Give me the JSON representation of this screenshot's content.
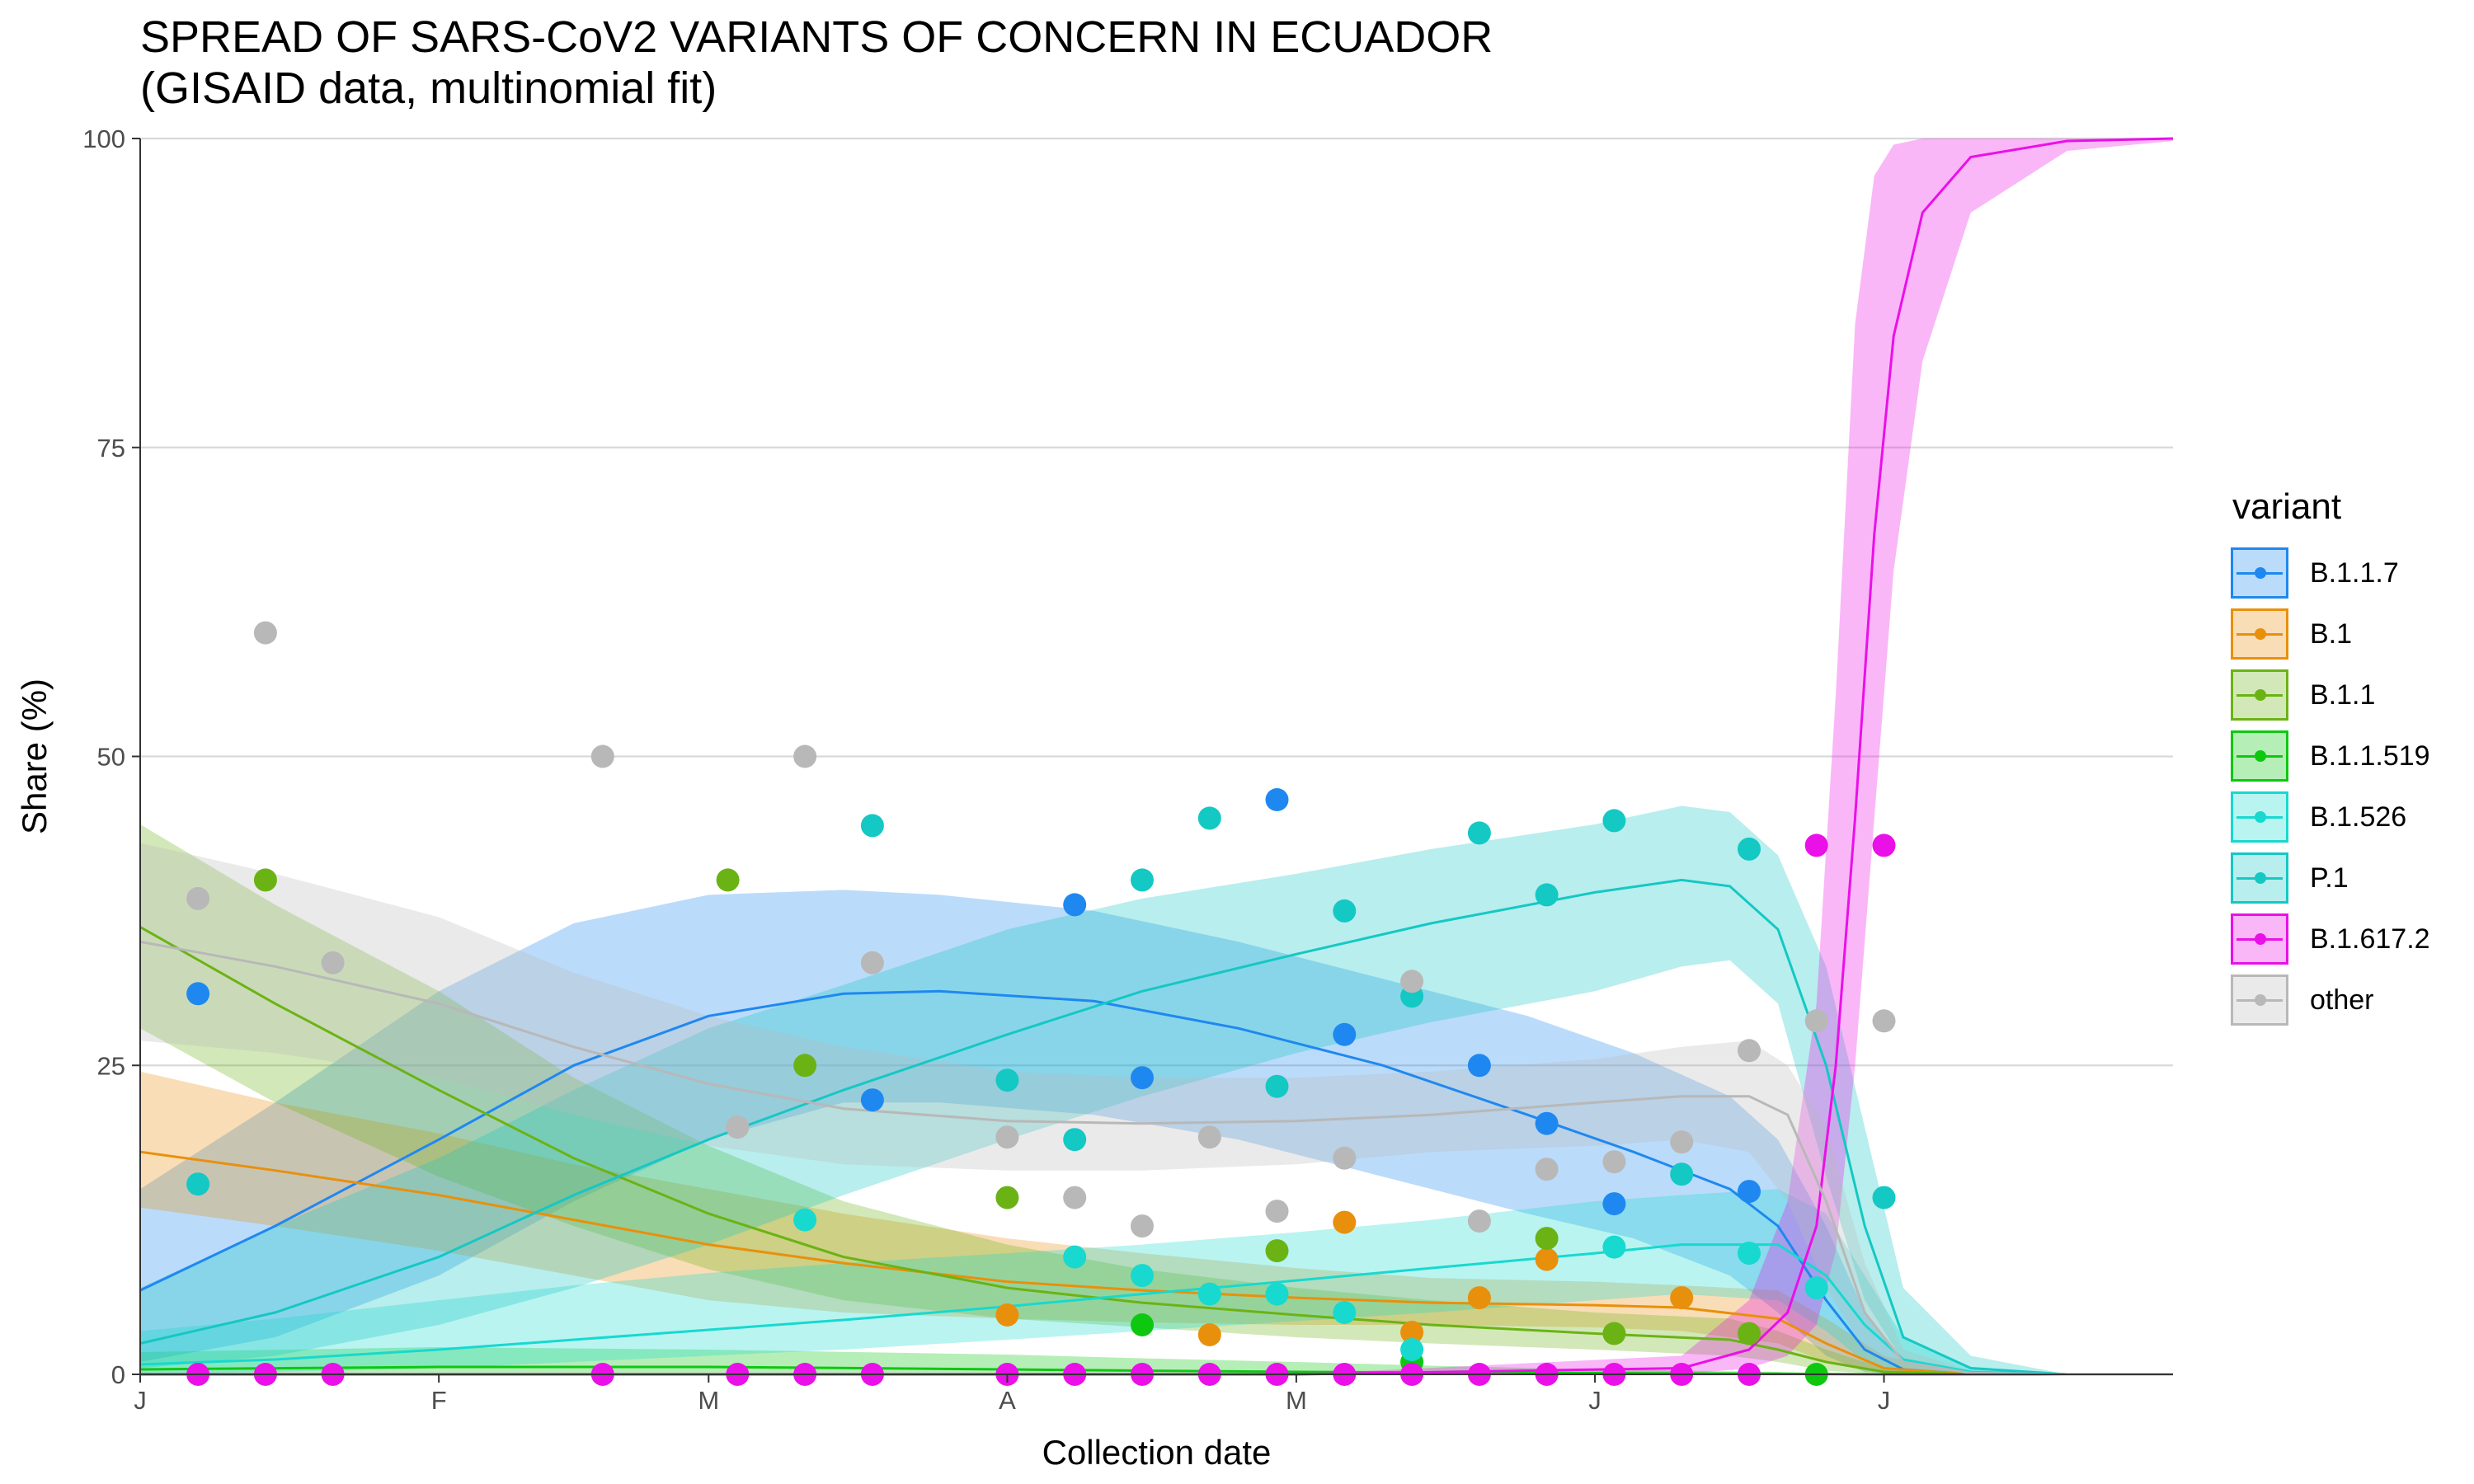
{
  "title_lines": [
    "SPREAD OF SARS-CoV2 VARIANTS OF CONCERN IN ECUADOR",
    "(GISAID data, multinomial fit)"
  ],
  "chart_data": {
    "type": "line",
    "title": "SPREAD OF SARS-CoV2 VARIANTS OF CONCERN IN ECUADOR (GISAID data, multinomial fit)",
    "xlabel": "Collection date",
    "ylabel": "Share (%)",
    "xlim": [
      "2021-01-01",
      "2021-07-31"
    ],
    "ylim": [
      0,
      100
    ],
    "x_ticks": [
      {
        "date": "2021-01-01",
        "label": "J"
      },
      {
        "date": "2021-02-01",
        "label": "F"
      },
      {
        "date": "2021-03-01",
        "label": "M"
      },
      {
        "date": "2021-04-01",
        "label": "A"
      },
      {
        "date": "2021-05-01",
        "label": "M"
      },
      {
        "date": "2021-06-01",
        "label": "J"
      },
      {
        "date": "2021-07-01",
        "label": "J"
      }
    ],
    "y_ticks": [
      0,
      25,
      50,
      75,
      100
    ],
    "grid": true,
    "legend_title": "variant",
    "legend_position": "right",
    "series": [
      {
        "name": "B.1.1.7",
        "color": "#1f88f0",
        "fit_x": [
          "2021-01-01",
          "2021-01-15",
          "2021-02-01",
          "2021-02-15",
          "2021-03-01",
          "2021-03-15",
          "2021-03-25",
          "2021-04-10",
          "2021-04-25",
          "2021-05-10",
          "2021-05-25",
          "2021-06-05",
          "2021-06-15",
          "2021-06-20",
          "2021-06-25",
          "2021-06-29",
          "2021-07-03",
          "2021-07-10",
          "2021-07-20",
          "2021-07-31"
        ],
        "fit": [
          6.8,
          12,
          19,
          25,
          29,
          30.8,
          31,
          30.2,
          28,
          25,
          21,
          18,
          15,
          12,
          6,
          2,
          0.4,
          0,
          0,
          0
        ],
        "ci_lo": [
          1,
          3,
          8,
          14,
          19,
          22,
          22,
          21,
          19,
          16,
          13,
          11,
          8,
          5,
          1.5,
          0.2,
          0,
          0,
          0,
          0
        ],
        "ci_hi": [
          15,
          22,
          31,
          36.5,
          38.8,
          39.2,
          38.8,
          37.5,
          35,
          32,
          29,
          26,
          22.5,
          19,
          12,
          5,
          1,
          0,
          0,
          0
        ],
        "points": [
          [
            "2021-01-07",
            30.8
          ],
          [
            "2021-03-18",
            22.2
          ],
          [
            "2021-04-08",
            38
          ],
          [
            "2021-04-15",
            24
          ],
          [
            "2021-04-29",
            46.5
          ],
          [
            "2021-05-06",
            27.5
          ],
          [
            "2021-05-20",
            25
          ],
          [
            "2021-05-27",
            20.3
          ],
          [
            "2021-06-03",
            13.8
          ],
          [
            "2021-06-17",
            14.8
          ]
        ]
      },
      {
        "name": "B.1",
        "color": "#e8900c",
        "fit_x": [
          "2021-01-01",
          "2021-01-15",
          "2021-02-01",
          "2021-02-15",
          "2021-03-01",
          "2021-03-15",
          "2021-04-01",
          "2021-04-15",
          "2021-05-01",
          "2021-05-15",
          "2021-06-01",
          "2021-06-10",
          "2021-06-20",
          "2021-06-25",
          "2021-07-01",
          "2021-07-10",
          "2021-07-31"
        ],
        "fit": [
          18,
          16.5,
          14.5,
          12.5,
          10.5,
          9,
          7.5,
          6.8,
          6.2,
          5.8,
          5.6,
          5.4,
          4.5,
          2.5,
          0.5,
          0,
          0
        ],
        "ci_lo": [
          13.5,
          12,
          10,
          8,
          6,
          5,
          4.5,
          4.2,
          4,
          4,
          3.8,
          3.5,
          2.5,
          1,
          0.1,
          0,
          0
        ],
        "ci_hi": [
          24.5,
          22,
          19.5,
          17,
          15,
          13,
          11,
          9.8,
          8.6,
          7.8,
          7.5,
          7.2,
          6.8,
          4.5,
          1.5,
          0,
          0
        ],
        "points": [
          [
            "2021-04-01",
            4.8
          ],
          [
            "2021-04-22",
            3.2
          ],
          [
            "2021-05-06",
            12.3
          ],
          [
            "2021-05-13",
            3.4
          ],
          [
            "2021-05-20",
            6.2
          ],
          [
            "2021-05-27",
            9.3
          ],
          [
            "2021-06-10",
            6.2
          ]
        ]
      },
      {
        "name": "B.1.1",
        "color": "#6bb314",
        "fit_x": [
          "2021-01-01",
          "2021-01-15",
          "2021-02-01",
          "2021-02-15",
          "2021-03-01",
          "2021-03-15",
          "2021-04-01",
          "2021-04-15",
          "2021-05-01",
          "2021-05-15",
          "2021-06-01",
          "2021-06-15",
          "2021-06-20",
          "2021-06-25",
          "2021-07-01",
          "2021-07-10",
          "2021-07-31"
        ],
        "fit": [
          36.2,
          30,
          23,
          17.5,
          13,
          9.5,
          7,
          5.8,
          4.8,
          4,
          3.3,
          2.8,
          2,
          1,
          0.2,
          0,
          0
        ],
        "ci_lo": [
          28,
          22,
          16,
          12,
          8.5,
          6,
          4.5,
          3.8,
          3,
          2.5,
          2,
          1.5,
          1,
          0.3,
          0,
          0,
          0
        ],
        "ci_hi": [
          44.5,
          38,
          31,
          24,
          18.5,
          14,
          10.5,
          8.5,
          7,
          6,
          5,
          4.5,
          3.5,
          2,
          0.5,
          0,
          0
        ],
        "points": [
          [
            "2021-01-14",
            40
          ],
          [
            "2021-03-03",
            40
          ],
          [
            "2021-03-11",
            25
          ],
          [
            "2021-04-01",
            14.3
          ],
          [
            "2021-04-29",
            10
          ],
          [
            "2021-05-27",
            11
          ],
          [
            "2021-06-03",
            3.3
          ],
          [
            "2021-06-17",
            3.3
          ]
        ]
      },
      {
        "name": "B.1.1.519",
        "color": "#0ec810",
        "fit_x": [
          "2021-01-01",
          "2021-02-01",
          "2021-03-01",
          "2021-04-01",
          "2021-04-15",
          "2021-05-01",
          "2021-05-15",
          "2021-06-01",
          "2021-06-20",
          "2021-07-01",
          "2021-07-31"
        ],
        "fit": [
          0.4,
          0.6,
          0.6,
          0.4,
          0.3,
          0.2,
          0.15,
          0.1,
          0.05,
          0,
          0
        ],
        "ci_lo": [
          0,
          0.1,
          0.1,
          0.1,
          0,
          0,
          0,
          0,
          0,
          0,
          0
        ],
        "ci_hi": [
          1.8,
          2.2,
          2,
          1.6,
          1.3,
          1,
          0.7,
          0.4,
          0.2,
          0,
          0
        ],
        "points": [
          [
            "2021-04-15",
            4
          ],
          [
            "2021-05-13",
            1
          ],
          [
            "2021-06-24",
            0
          ]
        ]
      },
      {
        "name": "B.1.526",
        "color": "#17d9cf",
        "fit_x": [
          "2021-01-01",
          "2021-01-15",
          "2021-02-01",
          "2021-02-15",
          "2021-03-01",
          "2021-03-15",
          "2021-04-01",
          "2021-04-15",
          "2021-05-01",
          "2021-05-15",
          "2021-06-01",
          "2021-06-10",
          "2021-06-20",
          "2021-06-25",
          "2021-06-29",
          "2021-07-03",
          "2021-07-10",
          "2021-07-20",
          "2021-07-31"
        ],
        "fit": [
          0.8,
          1.2,
          2,
          2.8,
          3.6,
          4.4,
          5.5,
          6.5,
          7.6,
          8.6,
          9.8,
          10.5,
          10.5,
          8,
          4,
          1.2,
          0.2,
          0,
          0
        ],
        "ci_lo": [
          0,
          0.2,
          0.5,
          1,
          1.5,
          2,
          2.8,
          3.5,
          4.3,
          5,
          6,
          6.5,
          6,
          3.5,
          1,
          0.2,
          0,
          0,
          0
        ],
        "ci_hi": [
          3.5,
          4.5,
          6,
          7.2,
          8.2,
          9,
          9.8,
          10.5,
          11.5,
          12.5,
          14,
          14.5,
          15,
          13,
          8,
          3,
          0.6,
          0,
          0
        ],
        "points": [
          [
            "2021-03-11",
            12.5
          ],
          [
            "2021-04-08",
            9.5
          ],
          [
            "2021-04-15",
            8
          ],
          [
            "2021-04-22",
            6.5
          ],
          [
            "2021-04-29",
            6.5
          ],
          [
            "2021-05-06",
            5
          ],
          [
            "2021-05-13",
            2
          ],
          [
            "2021-06-03",
            10.3
          ],
          [
            "2021-06-17",
            9.8
          ],
          [
            "2021-06-24",
            7
          ]
        ]
      },
      {
        "name": "P.1",
        "color": "#14c8c4",
        "fit_x": [
          "2021-01-01",
          "2021-01-15",
          "2021-02-01",
          "2021-02-15",
          "2021-03-01",
          "2021-03-15",
          "2021-04-01",
          "2021-04-15",
          "2021-05-01",
          "2021-05-15",
          "2021-06-01",
          "2021-06-10",
          "2021-06-15",
          "2021-06-20",
          "2021-06-25",
          "2021-06-29",
          "2021-07-03",
          "2021-07-10",
          "2021-07-20",
          "2021-07-31"
        ],
        "fit": [
          2.5,
          5,
          9.5,
          14.5,
          19,
          23,
          27.5,
          31,
          34,
          36.5,
          39,
          40,
          39.5,
          36,
          25,
          12,
          3,
          0.5,
          0,
          0
        ],
        "ci_lo": [
          0.5,
          1.5,
          4,
          7,
          10.5,
          14.5,
          19,
          22.5,
          26,
          28.5,
          31,
          33,
          33.5,
          30,
          16,
          6,
          1,
          0,
          0,
          0
        ],
        "ci_hi": [
          7,
          12,
          17.5,
          23,
          28,
          31.5,
          36,
          38.5,
          40.5,
          42.5,
          44.5,
          46,
          45.5,
          42,
          33,
          20,
          7,
          1.5,
          0,
          0
        ],
        "points": [
          [
            "2021-01-07",
            15.4
          ],
          [
            "2021-03-18",
            44.4
          ],
          [
            "2021-04-01",
            23.8
          ],
          [
            "2021-04-08",
            19
          ],
          [
            "2021-04-15",
            40
          ],
          [
            "2021-04-22",
            45
          ],
          [
            "2021-04-29",
            23.3
          ],
          [
            "2021-05-06",
            37.5
          ],
          [
            "2021-05-13",
            30.6
          ],
          [
            "2021-05-20",
            43.8
          ],
          [
            "2021-05-27",
            38.8
          ],
          [
            "2021-06-03",
            44.8
          ],
          [
            "2021-06-10",
            16.2
          ],
          [
            "2021-06-17",
            42.5
          ],
          [
            "2021-07-01",
            14.3
          ]
        ]
      },
      {
        "name": "B.1.617.2",
        "color": "#ea10e8",
        "fit_x": [
          "2021-01-01",
          "2021-05-01",
          "2021-06-10",
          "2021-06-17",
          "2021-06-21",
          "2021-06-24",
          "2021-06-26",
          "2021-06-28",
          "2021-06-30",
          "2021-07-02",
          "2021-07-05",
          "2021-07-10",
          "2021-07-20",
          "2021-07-31"
        ],
        "fit": [
          0,
          0,
          0.5,
          2,
          5,
          12,
          25,
          45,
          68,
          84,
          94,
          98.5,
          99.8,
          100
        ],
        "ci_lo": [
          0,
          0,
          0,
          0.5,
          1.5,
          4,
          10,
          25,
          45,
          65,
          82,
          94,
          99,
          99.8
        ],
        "ci_hi": [
          0,
          0,
          1.5,
          6,
          14,
          30,
          55,
          85,
          97,
          99.5,
          100,
          100,
          100,
          100
        ],
        "points": [
          [
            "2021-01-07",
            0
          ],
          [
            "2021-01-14",
            0
          ],
          [
            "2021-01-21",
            0
          ],
          [
            "2021-02-18",
            0
          ],
          [
            "2021-03-04",
            0
          ],
          [
            "2021-03-11",
            0
          ],
          [
            "2021-03-18",
            0
          ],
          [
            "2021-04-01",
            0
          ],
          [
            "2021-04-08",
            0
          ],
          [
            "2021-04-15",
            0
          ],
          [
            "2021-04-22",
            0
          ],
          [
            "2021-04-29",
            0
          ],
          [
            "2021-05-06",
            0
          ],
          [
            "2021-05-13",
            0
          ],
          [
            "2021-05-20",
            0
          ],
          [
            "2021-05-27",
            0
          ],
          [
            "2021-06-03",
            0
          ],
          [
            "2021-06-10",
            0
          ],
          [
            "2021-06-17",
            0
          ],
          [
            "2021-06-24",
            42.8
          ],
          [
            "2021-07-01",
            42.8
          ]
        ]
      },
      {
        "name": "other",
        "color": "#b8b8b8",
        "fit_x": [
          "2021-01-01",
          "2021-01-15",
          "2021-02-01",
          "2021-02-15",
          "2021-03-01",
          "2021-03-15",
          "2021-04-01",
          "2021-04-15",
          "2021-05-01",
          "2021-05-15",
          "2021-06-01",
          "2021-06-10",
          "2021-06-17",
          "2021-06-21",
          "2021-06-25",
          "2021-06-29",
          "2021-07-03",
          "2021-07-10",
          "2021-07-20",
          "2021-07-31"
        ],
        "fit": [
          35,
          33,
          30,
          26.5,
          23.5,
          21.5,
          20.5,
          20.3,
          20.5,
          21,
          22,
          22.5,
          22.5,
          21,
          14,
          5,
          1,
          0.1,
          0,
          0
        ],
        "ci_lo": [
          27,
          26,
          24,
          21,
          18.5,
          17,
          16.5,
          16.5,
          17,
          18,
          18.5,
          19,
          18,
          14,
          7,
          2,
          0.3,
          0,
          0,
          0
        ],
        "ci_hi": [
          43,
          40.5,
          37,
          32.5,
          29,
          26.5,
          24.5,
          24,
          24,
          24.5,
          25.5,
          26.5,
          27,
          25,
          20,
          9,
          2,
          0.3,
          0,
          0
        ],
        "points": [
          [
            "2021-01-07",
            38.5
          ],
          [
            "2021-01-14",
            60
          ],
          [
            "2021-01-21",
            33.3
          ],
          [
            "2021-02-18",
            50
          ],
          [
            "2021-03-04",
            20
          ],
          [
            "2021-03-11",
            50
          ],
          [
            "2021-03-18",
            33.3
          ],
          [
            "2021-04-01",
            19.2
          ],
          [
            "2021-04-08",
            14.3
          ],
          [
            "2021-04-15",
            12
          ],
          [
            "2021-04-22",
            19.2
          ],
          [
            "2021-04-29",
            13.2
          ],
          [
            "2021-05-06",
            17.5
          ],
          [
            "2021-05-13",
            31.8
          ],
          [
            "2021-05-20",
            12.4
          ],
          [
            "2021-05-27",
            16.6
          ],
          [
            "2021-06-03",
            17.2
          ],
          [
            "2021-06-10",
            18.8
          ],
          [
            "2021-06-17",
            26.2
          ],
          [
            "2021-06-24",
            28.6
          ],
          [
            "2021-07-01",
            28.6
          ]
        ]
      }
    ]
  }
}
